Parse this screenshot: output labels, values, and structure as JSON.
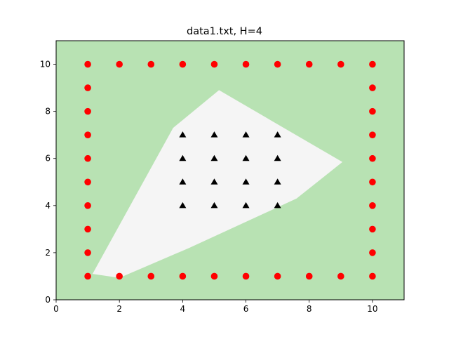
{
  "chart_data": {
    "type": "scatter",
    "title": "data1.txt, H=4",
    "xlabel": "",
    "ylabel": "",
    "xlim": [
      0,
      11
    ],
    "ylim": [
      0,
      11
    ],
    "xticks": [
      0,
      2,
      4,
      6,
      8,
      10
    ],
    "yticks": [
      0,
      2,
      4,
      6,
      8,
      10
    ],
    "grid": false,
    "background_region_color": "#b8e2b3",
    "decision_region": {
      "color": "#f5f5f5",
      "polygon": [
        [
          1.15,
          1.1
        ],
        [
          2.0,
          0.93
        ],
        [
          4.2,
          2.2
        ],
        [
          7.6,
          4.3
        ],
        [
          9.05,
          5.85
        ],
        [
          5.15,
          8.9
        ],
        [
          3.7,
          7.3
        ]
      ]
    },
    "series": [
      {
        "marker": "circle",
        "color": "#ff0000",
        "points": [
          [
            1,
            1
          ],
          [
            2,
            1
          ],
          [
            3,
            1
          ],
          [
            4,
            1
          ],
          [
            5,
            1
          ],
          [
            6,
            1
          ],
          [
            7,
            1
          ],
          [
            8,
            1
          ],
          [
            9,
            1
          ],
          [
            10,
            1
          ],
          [
            1,
            10
          ],
          [
            2,
            10
          ],
          [
            3,
            10
          ],
          [
            4,
            10
          ],
          [
            5,
            10
          ],
          [
            6,
            10
          ],
          [
            7,
            10
          ],
          [
            8,
            10
          ],
          [
            9,
            10
          ],
          [
            10,
            10
          ],
          [
            1,
            2
          ],
          [
            1,
            3
          ],
          [
            1,
            4
          ],
          [
            1,
            5
          ],
          [
            1,
            6
          ],
          [
            1,
            7
          ],
          [
            1,
            8
          ],
          [
            1,
            9
          ],
          [
            10,
            2
          ],
          [
            10,
            3
          ],
          [
            10,
            4
          ],
          [
            10,
            5
          ],
          [
            10,
            6
          ],
          [
            10,
            7
          ],
          [
            10,
            8
          ],
          [
            10,
            9
          ]
        ]
      },
      {
        "marker": "triangle",
        "color": "#000000",
        "points": [
          [
            4,
            4
          ],
          [
            5,
            4
          ],
          [
            6,
            4
          ],
          [
            7,
            4
          ],
          [
            4,
            5
          ],
          [
            5,
            5
          ],
          [
            6,
            5
          ],
          [
            7,
            5
          ],
          [
            4,
            6
          ],
          [
            5,
            6
          ],
          [
            6,
            6
          ],
          [
            7,
            6
          ],
          [
            4,
            7
          ],
          [
            5,
            7
          ],
          [
            6,
            7
          ],
          [
            7,
            7
          ]
        ]
      }
    ]
  }
}
